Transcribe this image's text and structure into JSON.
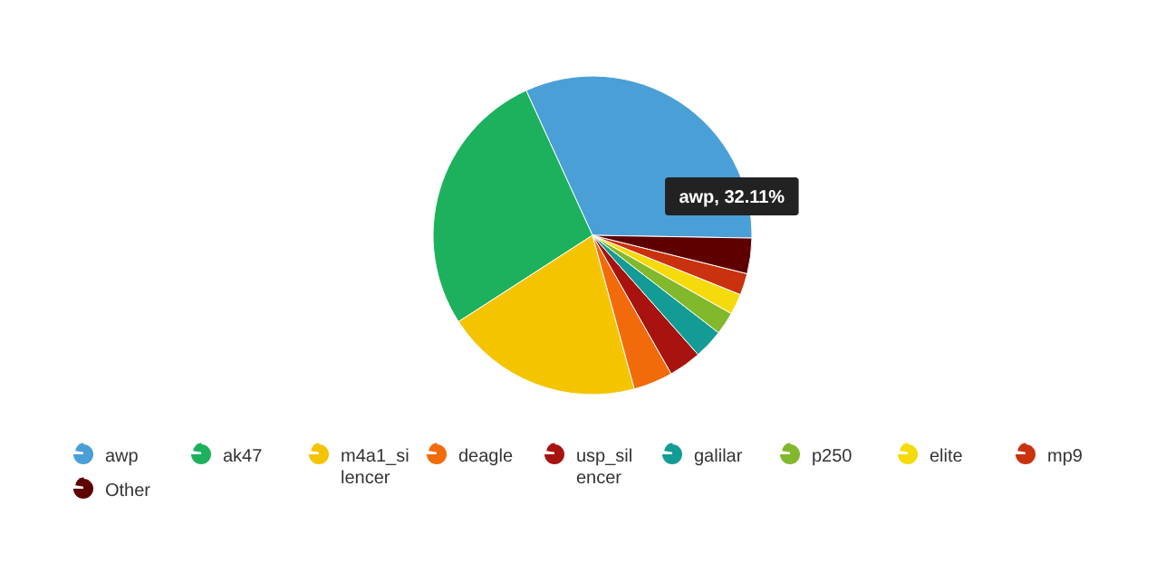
{
  "chart_data": {
    "type": "pie",
    "categories": [
      "awp",
      "ak47",
      "m4a1_silencer",
      "deagle",
      "usp_silencer",
      "galilar",
      "p250",
      "elite",
      "mp9",
      "Other"
    ],
    "values": [
      32.11,
      27.29,
      20.1,
      4,
      3.3,
      3,
      2.3,
      2.1,
      2.2,
      3.6
    ],
    "colors": [
      "#4a9fd6",
      "#1db15e",
      "#f5c400",
      "#f26b0a",
      "#a8120f",
      "#139c95",
      "#82b82c",
      "#f5db0b",
      "#c9310f",
      "#5e0000"
    ],
    "annotations": [
      "awp, 32.11%"
    ],
    "legend": "bottom"
  }
}
